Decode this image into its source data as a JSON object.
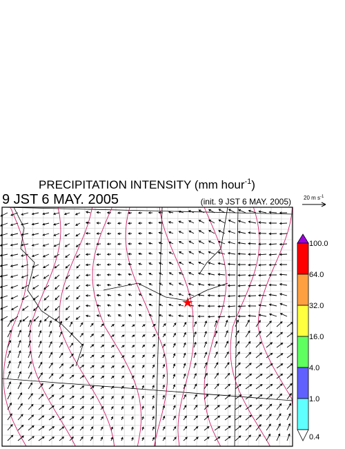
{
  "header": {
    "title_main": "PRECIPITATION INTENSITY (mm hour",
    "title_sup": "-1",
    "title_end": ")",
    "valid_time": "9 JST 6 MAY. 2005",
    "init_time": "(init. 9 JST 6 MAY. 2005)"
  },
  "reference_vector": {
    "label_main": "20 m s",
    "label_sup": "-1"
  },
  "colorbar": {
    "colors": [
      "#a000e0",
      "#ff0000",
      "#ffa040",
      "#ffff40",
      "#60ff60",
      "#6060ff",
      "#60ffff",
      "#ffffff"
    ],
    "labels": [
      "100.0",
      "64.0",
      "32.0",
      "16.0",
      "4.0",
      "1.0",
      "0.4"
    ]
  }
}
